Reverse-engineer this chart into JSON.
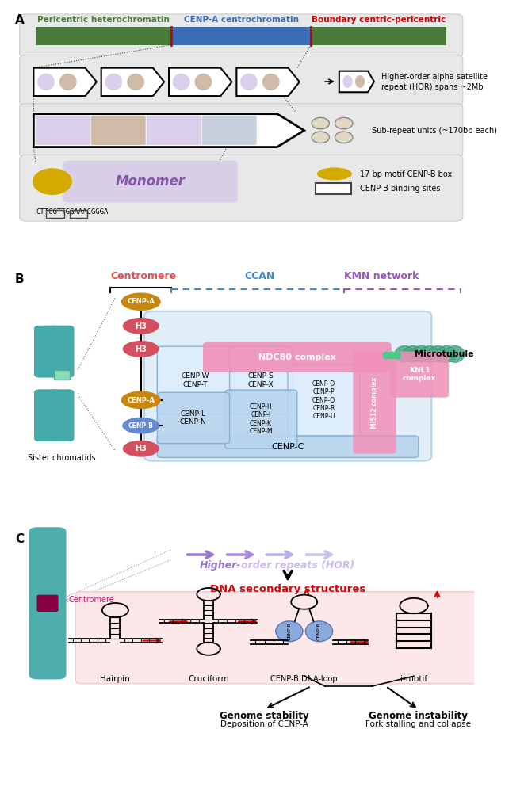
{
  "panel_A": {
    "bar_green": "#4a7a3a",
    "bar_blue": "#3a6cb5",
    "label_green": "Pericentric heterochromatin",
    "label_blue": "CENP-A centrochromatin",
    "label_red": "Boundary centric-pericentric",
    "hor_text1": "Higher-order alpha satellite",
    "hor_text2": "repeat (HOR) spans ~2Mb",
    "sub_text": "Sub-repeat units (~170bp each)",
    "monomer_text": "Monomer",
    "box17_text": "17 bp motif CENP-B box",
    "cenpb_text": "CENP-B binding sites",
    "dna_seq": "CTTCGTTGGAAACGGGA",
    "monomer_purple": "#8855aa",
    "monomer_bg": "#d4c8e8",
    "cenp_yellow": "#d4aa00",
    "sub_colors": [
      "#d4c8e8",
      "#c8b09a",
      "#d4c8e8",
      "#c0c8d8"
    ],
    "hor_ellipse_colors": [
      "#d4c8e8",
      "#c8b09a"
    ]
  },
  "panel_B": {
    "title_centromere": "Centromere",
    "title_ccan": "CCAN",
    "title_kmn": "KMN network",
    "color_centromere": "#e05050",
    "color_ccan": "#4488cc",
    "color_kmn": "#9955bb",
    "cenpa_color": "#c8860a",
    "h3_color": "#d45060",
    "cenpb_color": "#6688cc",
    "blue_box_color": "#c5ddf0",
    "pink_box_color": "#f090b8",
    "microtubule_color": "#44aa88",
    "chromosome_color": "#44aaaa"
  },
  "panel_C": {
    "centromere_label": "Centromere",
    "centromere_color": "#cc1177",
    "hor_dark": "#9977cc",
    "hor_light": "#d0c0e8",
    "dna_sec_text": "DNA secondary structures",
    "dna_color": "#dd0000",
    "hairpin_label": "Hairpin",
    "cruciform_label": "Cruciform",
    "cenp_label": "CENP-B DNA-loop",
    "imotif_label": "i-motif",
    "genome_stable": "Genome stability",
    "genome_stable_sub": "Deposition of CENP-A",
    "genome_unstable": "Genome instability",
    "genome_unstable_sub": "Fork stalling and collapse",
    "cenp_blue": "#88aadd",
    "chromosome_color": "#44aaaa",
    "centromere_dot_color": "#880044",
    "pink_bg": "#fce8e8"
  }
}
